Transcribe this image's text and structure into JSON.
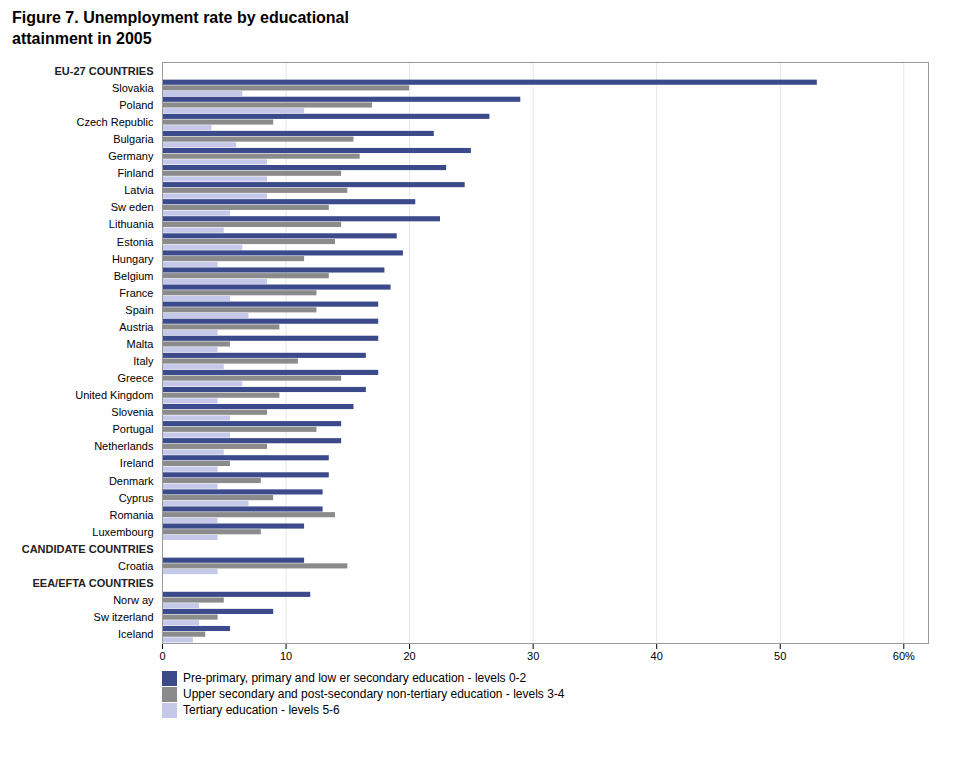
{
  "chart_data": {
    "type": "bar",
    "orientation": "horizontal",
    "title": "Figure 7. Unemployment rate by educational\nattainment in 2005",
    "categories": [
      "EU-27 COUNTRIES",
      "Slovakia",
      "Poland",
      "Czech Republic",
      "Bulgaria",
      "Germany",
      "Finland",
      "Latvia",
      "Sw eden",
      "Lithuania",
      "Estonia",
      "Hungary",
      "Belgium",
      "France",
      "Spain",
      "Austria",
      "Malta",
      "Italy",
      "Greece",
      "United Kingdom",
      "Slovenia",
      "Portugal",
      "Netherlands",
      "Ireland",
      "Denmark",
      "Cyprus",
      "Romania",
      "Luxembourg",
      "CANDIDATE COUNTRIES",
      "Croatia",
      "EEA/EFTA COUNTRIES",
      "Norw ay",
      "Sw itzerland",
      "Iceland"
    ],
    "series": [
      {
        "name": "Pre-primary, primary and low er secondary education - levels 0-2",
        "color": "#3B4A8A",
        "values": [
          null,
          53.0,
          29.0,
          26.5,
          22.0,
          25.0,
          23.0,
          24.5,
          20.5,
          22.5,
          19.0,
          19.5,
          18.0,
          18.5,
          17.5,
          17.5,
          17.5,
          16.5,
          17.5,
          16.5,
          15.5,
          14.5,
          14.5,
          13.5,
          13.5,
          13.0,
          13.0,
          11.5,
          null,
          11.5,
          null,
          12.0,
          9.0,
          5.5
        ]
      },
      {
        "name": "Upper secondary and post-secondary non-tertiary education - levels 3-4",
        "color": "#8B8B8B",
        "values": [
          null,
          20.0,
          17.0,
          9.0,
          15.5,
          16.0,
          14.5,
          15.0,
          13.5,
          14.5,
          14.0,
          11.5,
          13.5,
          12.5,
          12.5,
          9.5,
          5.5,
          11.0,
          14.5,
          9.5,
          8.5,
          12.5,
          8.5,
          5.5,
          8.0,
          9.0,
          14.0,
          8.0,
          null,
          15.0,
          null,
          5.0,
          4.5,
          3.5
        ]
      },
      {
        "name": "Tertiary education - levels 5-6",
        "color": "#C5C8E8",
        "values": [
          null,
          6.5,
          11.5,
          4.0,
          6.0,
          8.5,
          8.5,
          8.5,
          5.5,
          5.0,
          6.5,
          4.5,
          8.5,
          5.5,
          7.0,
          4.5,
          4.5,
          5.0,
          6.5,
          4.5,
          5.5,
          5.5,
          5.0,
          4.5,
          4.5,
          7.0,
          4.5,
          4.5,
          null,
          4.5,
          null,
          3.0,
          3.0,
          2.5
        ]
      }
    ],
    "xlim": [
      0,
      62
    ],
    "xticks": [
      0,
      10,
      20,
      30,
      40,
      50,
      {
        "value": 60,
        "label": "60%"
      }
    ],
    "grid": true,
    "legend": "bottom left"
  }
}
